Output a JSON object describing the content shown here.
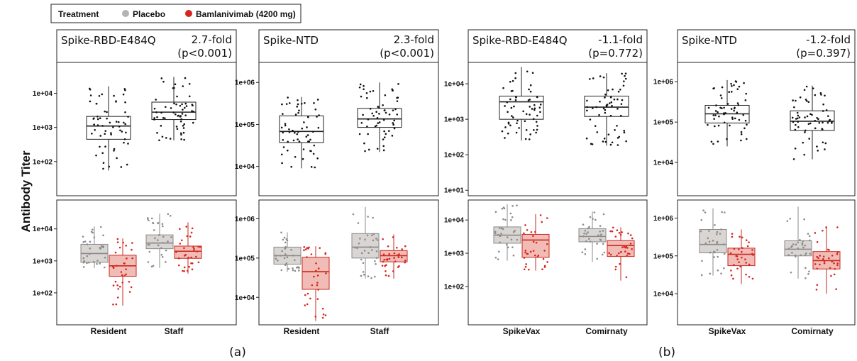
{
  "figure": {
    "y_axis_label": "Antibody Titer",
    "legend": {
      "title": "Treatment",
      "items": [
        {
          "label": "Placebo",
          "color": "#b3b3b3"
        },
        {
          "label": "Bamlanivimab (4200 mg)",
          "color": "#d7261e"
        }
      ]
    },
    "subfigure_labels": [
      "(a)",
      "(b)"
    ],
    "colors": {
      "placebo_fill": "#d9d5d3",
      "placebo_dot": "#8c8c8c",
      "bam_fill": "#f2bcb6",
      "bam_stroke": "#c8281f",
      "bam_dot": "#d7261e"
    }
  },
  "chart_data": [
    {
      "type": "box",
      "panel": "a-left",
      "title": "Spike-RBD-E484Q",
      "fold": "2.7-fold",
      "p": "(p<0.001)",
      "y_scale": "log",
      "ylim": [
        10,
        80000
      ],
      "top": {
        "categories": [
          "Resident",
          "Staff"
        ],
        "ticks": [
          "1e+02",
          "1e+03",
          "1e+04"
        ],
        "boxes": [
          {
            "group": "all",
            "q1": 450,
            "median": 1100,
            "q3": 2100,
            "whisker_low": 55,
            "whisker_high": 16000
          },
          {
            "group": "all",
            "q1": 1700,
            "median": 2800,
            "q3": 5500,
            "whisker_low": 420,
            "whisker_high": 30000
          }
        ]
      },
      "bottom": {
        "categories": [
          "Resident",
          "Staff"
        ],
        "ticks": [
          "1e+02",
          "1e+03",
          "1e+04"
        ],
        "series": [
          "Placebo",
          "Bamlanivimab (4200 mg)"
        ],
        "boxes": [
          {
            "category": "Resident",
            "series": "Placebo",
            "q1": 900,
            "median": 1700,
            "q3": 3300,
            "whisker_low": 600,
            "whisker_high": 12000
          },
          {
            "category": "Resident",
            "series": "Bamlanivimab (4200 mg)",
            "q1": 330,
            "median": 700,
            "q3": 1500,
            "whisker_low": 40,
            "whisker_high": 5000
          },
          {
            "category": "Staff",
            "series": "Placebo",
            "q1": 2400,
            "median": 3600,
            "q3": 6500,
            "whisker_low": 600,
            "whisker_high": 30000
          },
          {
            "category": "Staff",
            "series": "Bamlanivimab (4200 mg)",
            "q1": 1200,
            "median": 2000,
            "q3": 2900,
            "whisker_low": 400,
            "whisker_high": 16000
          }
        ]
      }
    },
    {
      "type": "box",
      "panel": "a-right",
      "title": "Spike-NTD",
      "fold": "2.3-fold",
      "p": "(p<0.001)",
      "y_scale": "log",
      "ylim": [
        2000,
        3000000
      ],
      "top": {
        "categories": [
          "Resident",
          "Staff"
        ],
        "ticks": [
          "1e+04",
          "1e+05",
          "1e+06"
        ],
        "boxes": [
          {
            "group": "all",
            "q1": 37000,
            "median": 68000,
            "q3": 160000,
            "whisker_low": 9000,
            "whisker_high": 450000
          },
          {
            "group": "all",
            "q1": 85000,
            "median": 135000,
            "q3": 240000,
            "whisker_low": 22000,
            "whisker_high": 1000000
          }
        ]
      },
      "bottom": {
        "categories": [
          "Resident",
          "Staff"
        ],
        "ticks": [
          "1e+04",
          "1e+05",
          "1e+06"
        ],
        "series": [
          "Placebo",
          "Bamlanivimab (4200 mg)"
        ],
        "boxes": [
          {
            "category": "Resident",
            "series": "Placebo",
            "q1": 70000,
            "median": 115000,
            "q3": 190000,
            "whisker_low": 45000,
            "whisker_high": 450000
          },
          {
            "category": "Resident",
            "series": "Bamlanivimab (4200 mg)",
            "q1": 16000,
            "median": 45000,
            "q3": 105000,
            "whisker_low": 2500,
            "whisker_high": 200000
          },
          {
            "category": "Staff",
            "series": "Placebo",
            "q1": 100000,
            "median": 190000,
            "q3": 420000,
            "whisker_low": 30000,
            "whisker_high": 2000000
          },
          {
            "category": "Staff",
            "series": "Bamlanivimab (4200 mg)",
            "q1": 80000,
            "median": 115000,
            "q3": 155000,
            "whisker_low": 30000,
            "whisker_high": 400000
          }
        ]
      }
    },
    {
      "type": "box",
      "panel": "b-left",
      "title": "Spike-RBD-E484Q",
      "fold": "-1.1-fold",
      "p": "(p=0.772)",
      "y_scale": "log",
      "ylim": [
        7,
        40000
      ],
      "top": {
        "categories": [
          "SpikeVax",
          "Comirnaty"
        ],
        "ticks": [
          "1e+01",
          "1e+02",
          "1e+03",
          "1e+04"
        ],
        "boxes": [
          {
            "group": "all",
            "q1": 1000,
            "median": 3100,
            "q3": 4500,
            "whisker_low": 250,
            "whisker_high": 30000
          },
          {
            "group": "all",
            "q1": 1200,
            "median": 2200,
            "q3": 4500,
            "whisker_low": 180,
            "whisker_high": 20000
          }
        ]
      },
      "bottom": {
        "categories": [
          "SpikeVax",
          "Comirnaty"
        ],
        "ticks": [
          "1e+02",
          "1e+03",
          "1e+04"
        ],
        "series": [
          "Placebo",
          "Bamlanivimab (4200 mg)"
        ],
        "boxes": [
          {
            "category": "SpikeVax",
            "series": "Placebo",
            "q1": 2000,
            "median": 3500,
            "q3": 6200,
            "whisker_low": 600,
            "whisker_high": 30000
          },
          {
            "category": "SpikeVax",
            "series": "Bamlanivimab (4200 mg)",
            "q1": 750,
            "median": 2500,
            "q3": 3700,
            "whisker_low": 300,
            "whisker_high": 15000
          },
          {
            "category": "Comirnaty",
            "series": "Placebo",
            "q1": 2200,
            "median": 3200,
            "q3": 5500,
            "whisker_low": 550,
            "whisker_high": 18000
          },
          {
            "category": "Comirnaty",
            "series": "Bamlanivimab (4200 mg)",
            "q1": 800,
            "median": 1700,
            "q3": 2400,
            "whisker_low": 150,
            "whisker_high": 6000
          }
        ]
      }
    },
    {
      "type": "box",
      "panel": "b-right",
      "title": "Spike-NTD",
      "fold": "-1.2-fold",
      "p": "(p=0.397)",
      "y_scale": "log",
      "ylim": [
        1500,
        3000000
      ],
      "top": {
        "categories": [
          "SpikeVax",
          "Comirnaty"
        ],
        "ticks": [
          "1e+04",
          "1e+05",
          "1e+06"
        ],
        "boxes": [
          {
            "group": "all",
            "q1": 95000,
            "median": 160000,
            "q3": 260000,
            "whisker_low": 25000,
            "whisker_high": 1100000
          },
          {
            "group": "all",
            "q1": 62000,
            "median": 105000,
            "q3": 190000,
            "whisker_low": 12000,
            "whisker_high": 800000
          }
        ]
      },
      "bottom": {
        "categories": [
          "SpikeVax",
          "Comirnaty"
        ],
        "ticks": [
          "1e+04",
          "1e+05",
          "1e+06"
        ],
        "series": [
          "Placebo",
          "Bamlanivimab (4200 mg)"
        ],
        "boxes": [
          {
            "category": "SpikeVax",
            "series": "Placebo",
            "q1": 120000,
            "median": 200000,
            "q3": 500000,
            "whisker_low": 30000,
            "whisker_high": 1800000
          },
          {
            "category": "SpikeVax",
            "series": "Bamlanivimab (4200 mg)",
            "q1": 55000,
            "median": 110000,
            "q3": 160000,
            "whisker_low": 18000,
            "whisker_high": 500000
          },
          {
            "category": "Comirnaty",
            "series": "Placebo",
            "q1": 100000,
            "median": 150000,
            "q3": 250000,
            "whisker_low": 25000,
            "whisker_high": 2000000
          },
          {
            "category": "Comirnaty",
            "series": "Bamlanivimab (4200 mg)",
            "q1": 45000,
            "median": 75000,
            "q3": 130000,
            "whisker_low": 10000,
            "whisker_high": 600000
          }
        ]
      }
    }
  ]
}
